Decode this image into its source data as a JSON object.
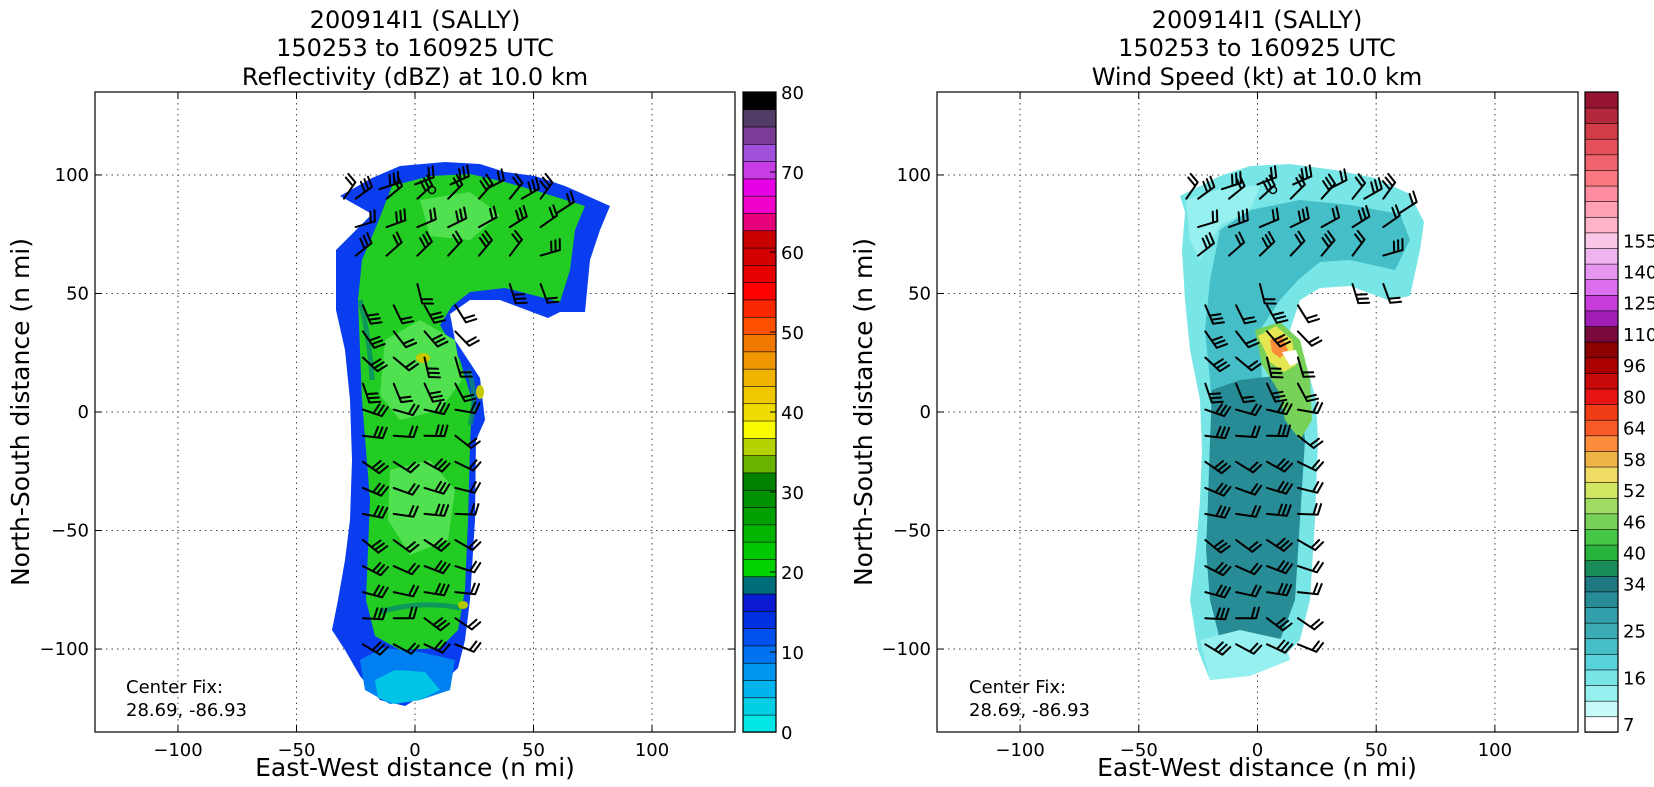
{
  "chart_data": [
    {
      "type": "contour-map",
      "title_lines": [
        "200914I1 (SALLY)",
        "150253 to 160925 UTC",
        "Reflectivity (dBZ) at 10.0 km"
      ],
      "xlabel": "East-West distance (n mi)",
      "ylabel": "North-South distance (n mi)",
      "xlim": [
        -135,
        135
      ],
      "ylim": [
        -135,
        135
      ],
      "xticks": [
        -100,
        -50,
        0,
        50,
        100
      ],
      "yticks": [
        -100,
        -50,
        0,
        50,
        100
      ],
      "xtick_labels": [
        "−100",
        "−50",
        "0",
        "50",
        "100"
      ],
      "ytick_labels": [
        "−100",
        "−50",
        "0",
        "50",
        "100"
      ],
      "grid": true,
      "annotation": [
        "Center Fix:",
        "28.69, -86.93"
      ],
      "colorbar": {
        "min": 0,
        "max": 80,
        "tick_values": [
          0,
          10,
          20,
          30,
          40,
          50,
          60,
          70,
          80
        ],
        "tick_labels": [
          "0",
          "10",
          "20",
          "30",
          "40",
          "50",
          "60",
          "70",
          "80"
        ],
        "colors": [
          "#00e6e6",
          "#00cfe6",
          "#00b4ee",
          "#0096f0",
          "#0073f0",
          "#0050f0",
          "#0030e0",
          "#0a1ad0",
          "#006e78",
          "#00d200",
          "#00c800",
          "#00b400",
          "#00a000",
          "#009100",
          "#008200",
          "#6ab400",
          "#b4d200",
          "#fafa00",
          "#f0dc00",
          "#f0c800",
          "#f0b400",
          "#f09600",
          "#f07800",
          "#ff5000",
          "#fa2800",
          "#ff0000",
          "#e60000",
          "#d20000",
          "#c80000",
          "#e6007a",
          "#f000c8",
          "#e600e6",
          "#c83ce6",
          "#a050dc",
          "#7a3c96",
          "#503c64",
          "#000000"
        ]
      },
      "field_colors": [
        "#0040f0",
        "#1ec81e",
        "#3cdc3c",
        "#00aa66",
        "#c8c800"
      ]
    },
    {
      "type": "contour-map",
      "title_lines": [
        "200914I1 (SALLY)",
        "150253 to 160925 UTC",
        "Wind Speed (kt) at 10.0 km"
      ],
      "xlabel": "East-West distance (n mi)",
      "ylabel": "North-South distance (n mi)",
      "xlim": [
        -135,
        135
      ],
      "ylim": [
        -135,
        135
      ],
      "xticks": [
        -100,
        -50,
        0,
        50,
        100
      ],
      "yticks": [
        -100,
        -50,
        0,
        50,
        100
      ],
      "xtick_labels": [
        "−100",
        "−50",
        "0",
        "50",
        "100"
      ],
      "ytick_labels": [
        "−100",
        "−50",
        "0",
        "50",
        "100"
      ],
      "grid": true,
      "annotation": [
        "Center Fix:",
        "28.69, -86.93"
      ],
      "colorbar": {
        "tick_labels": [
          "7",
          "16",
          "25",
          "34",
          "40",
          "46",
          "52",
          "58",
          "64",
          "80",
          "96",
          "110",
          "125",
          "140",
          "155"
        ],
        "tick_label_steps": [
          0,
          3,
          6,
          9,
          11,
          13,
          15,
          17,
          19,
          21,
          23,
          25,
          27,
          29,
          31
        ],
        "colors": [
          "#ffffff",
          "#c8fafa",
          "#96f0f0",
          "#78e6e6",
          "#5ad2dc",
          "#46bec8",
          "#3cacb4",
          "#32a0aa",
          "#288c96",
          "#1e7882",
          "#1a8c5a",
          "#28b43c",
          "#46c846",
          "#78d25a",
          "#a0dc64",
          "#d2e664",
          "#f0dc64",
          "#f0b446",
          "#fa8c3c",
          "#fa5a28",
          "#f03c14",
          "#e61414",
          "#c80a0a",
          "#aa0000",
          "#8c0000",
          "#780a3c",
          "#a01eb4",
          "#c83cdc",
          "#dc6ef0",
          "#e696f0",
          "#f0b4f0",
          "#fac8e6",
          "#ffb4c8",
          "#ffa0b4",
          "#ff8ca0",
          "#fa7882",
          "#f0646e",
          "#e6505a",
          "#d23c46",
          "#b4283c",
          "#961432"
        ]
      },
      "field_colors": [
        "#5ad2dc",
        "#288c96",
        "#96f0f0",
        "#e6e650",
        "#78d25a"
      ]
    }
  ]
}
